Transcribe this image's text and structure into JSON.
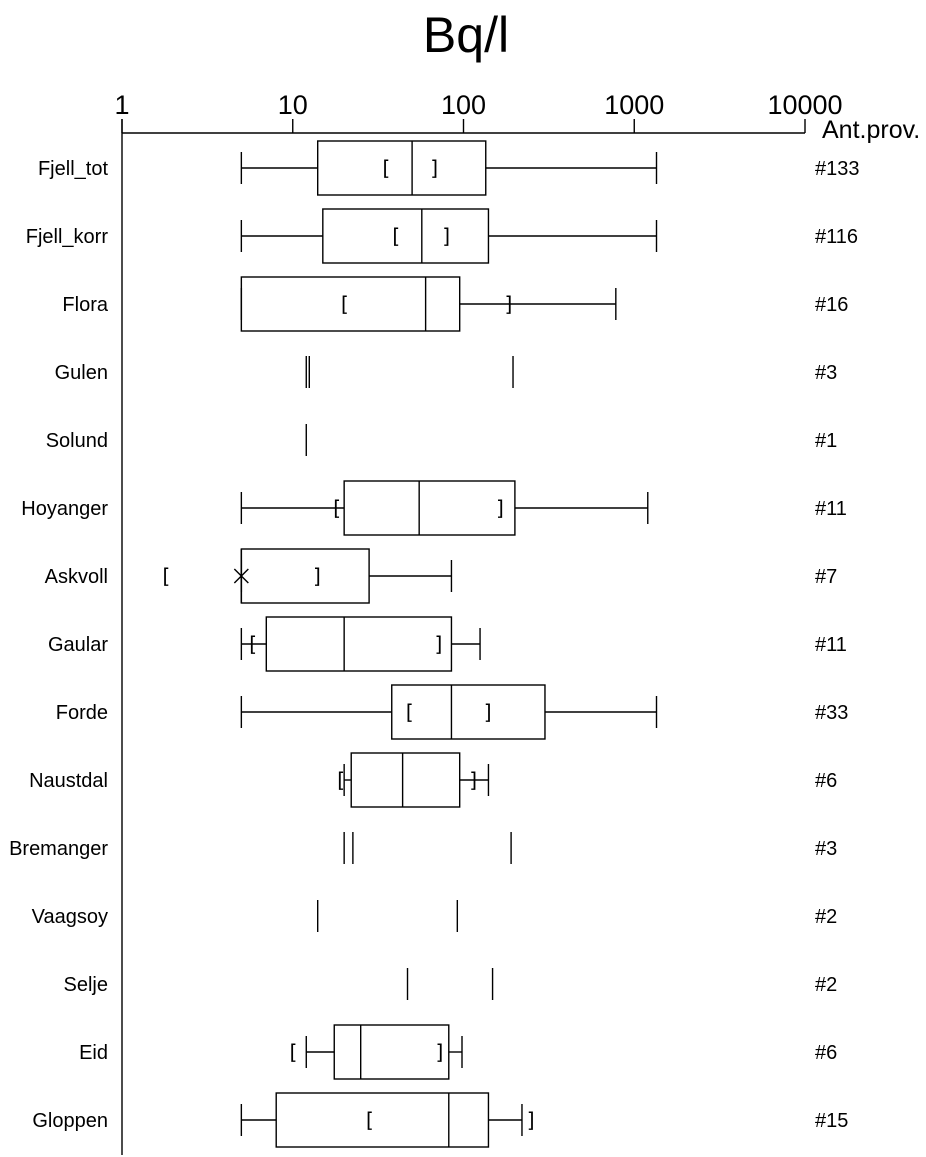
{
  "chart_data": {
    "type": "boxplot",
    "title": "Bq/l",
    "count_header": "Ant.prov.",
    "x_scale": "log",
    "xlim": [
      1,
      10000
    ],
    "xticks": [
      "1",
      "10",
      "100",
      "1000",
      "10000"
    ],
    "xtick_values": [
      1,
      10,
      100,
      1000,
      10000
    ],
    "grid": false,
    "categories": [
      {
        "label": "Fjell_tot",
        "count": "#133",
        "min": 5,
        "q1": 14,
        "median": 50,
        "q3": 135,
        "max": 1350,
        "ci": [
          35,
          68
        ]
      },
      {
        "label": "Fjell_korr",
        "count": "#116",
        "min": 5,
        "q1": 15,
        "median": 57,
        "q3": 140,
        "max": 1350,
        "ci": [
          40,
          80
        ]
      },
      {
        "label": "Flora",
        "count": "#16",
        "min": 5,
        "q1": 5,
        "median": 60,
        "q3": 95,
        "max": 780,
        "ci": [
          20,
          185
        ]
      },
      {
        "label": "Gulen",
        "count": "#3",
        "values": [
          12,
          12.5,
          195
        ]
      },
      {
        "label": "Solund",
        "count": "#1",
        "values": [
          12
        ]
      },
      {
        "label": "Hoyanger",
        "count": "#11",
        "min": 5,
        "q1": 20,
        "median": 55,
        "q3": 200,
        "max": 1200,
        "ci": [
          18,
          165
        ]
      },
      {
        "label": "Askvoll",
        "count": "#7",
        "min": 5,
        "q1": 5,
        "median": 5,
        "q3": 28,
        "max": 85,
        "outliers": [
          5
        ],
        "ci": [
          1.8,
          14
        ]
      },
      {
        "label": "Gaular",
        "count": "#11",
        "min": 5,
        "q1": 7,
        "median": 20,
        "q3": 85,
        "max": 125,
        "ci": [
          5.8,
          72
        ]
      },
      {
        "label": "Forde",
        "count": "#33",
        "min": 5,
        "q1": 38,
        "median": 85,
        "q3": 300,
        "max": 1350,
        "ci": [
          48,
          140
        ]
      },
      {
        "label": "Naustdal",
        "count": "#6",
        "min": 20,
        "q1": 22,
        "median": 44,
        "q3": 95,
        "max": 140,
        "ci": [
          19,
          115
        ]
      },
      {
        "label": "Bremanger",
        "count": "#3",
        "values": [
          20,
          22.5,
          190
        ]
      },
      {
        "label": "Vaagsoy",
        "count": "#2",
        "values": [
          14,
          92
        ]
      },
      {
        "label": "Selje",
        "count": "#2",
        "values": [
          47,
          148
        ]
      },
      {
        "label": "Eid",
        "count": "#6",
        "min": 12,
        "q1": 17.5,
        "median": 25,
        "q3": 82,
        "max": 98,
        "ci": [
          10,
          73
        ]
      },
      {
        "label": "Gloppen",
        "count": "#15",
        "min": 5,
        "q1": 8,
        "median": 82,
        "q3": 140,
        "max": 220,
        "ci": [
          28,
          250
        ]
      }
    ]
  }
}
